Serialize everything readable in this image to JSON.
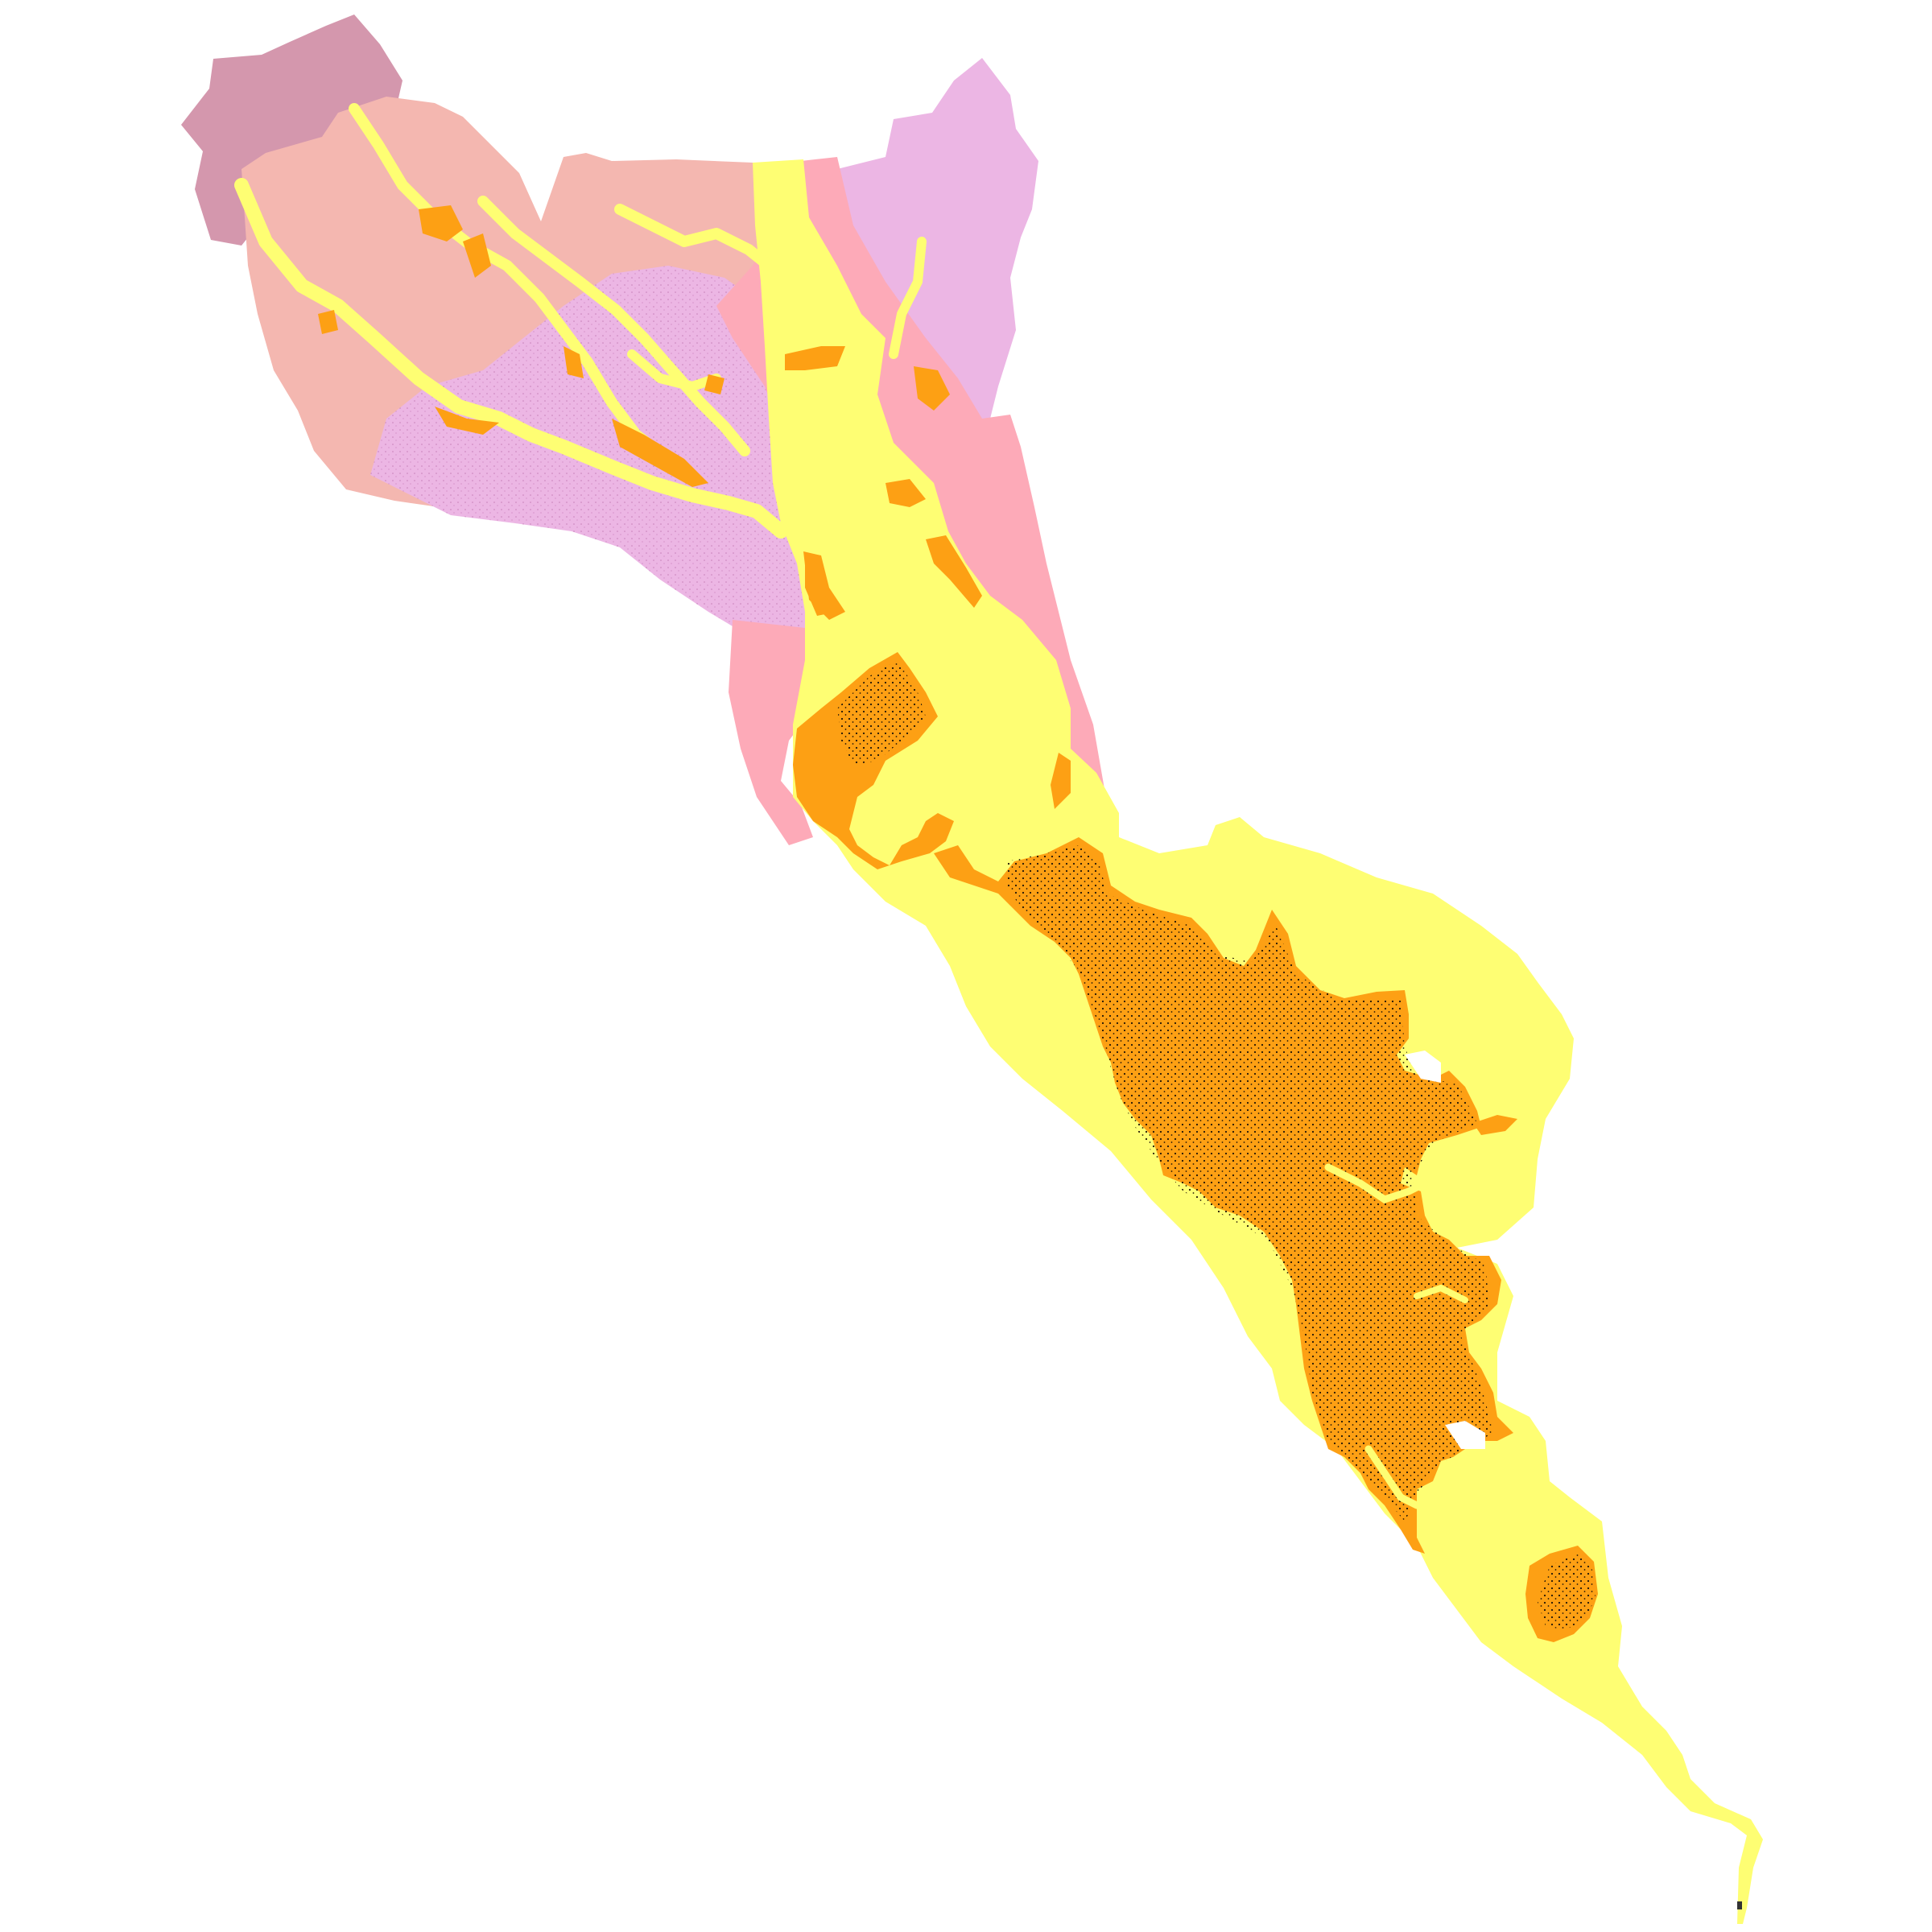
{
  "map": {
    "background": "#ffffff",
    "zone_colors": {
      "upland_mauve": "#d497ad",
      "slope_salmon": "#f4b7b0",
      "hill_lilac": "#ecb6e4",
      "ridge_pink": "#fdaab8",
      "lowland_yellow": "#fefe73",
      "floodplain_orange": "#fda014",
      "outlet_dark": "#333333"
    },
    "stipple_color": "#1f1408",
    "legend": []
  }
}
